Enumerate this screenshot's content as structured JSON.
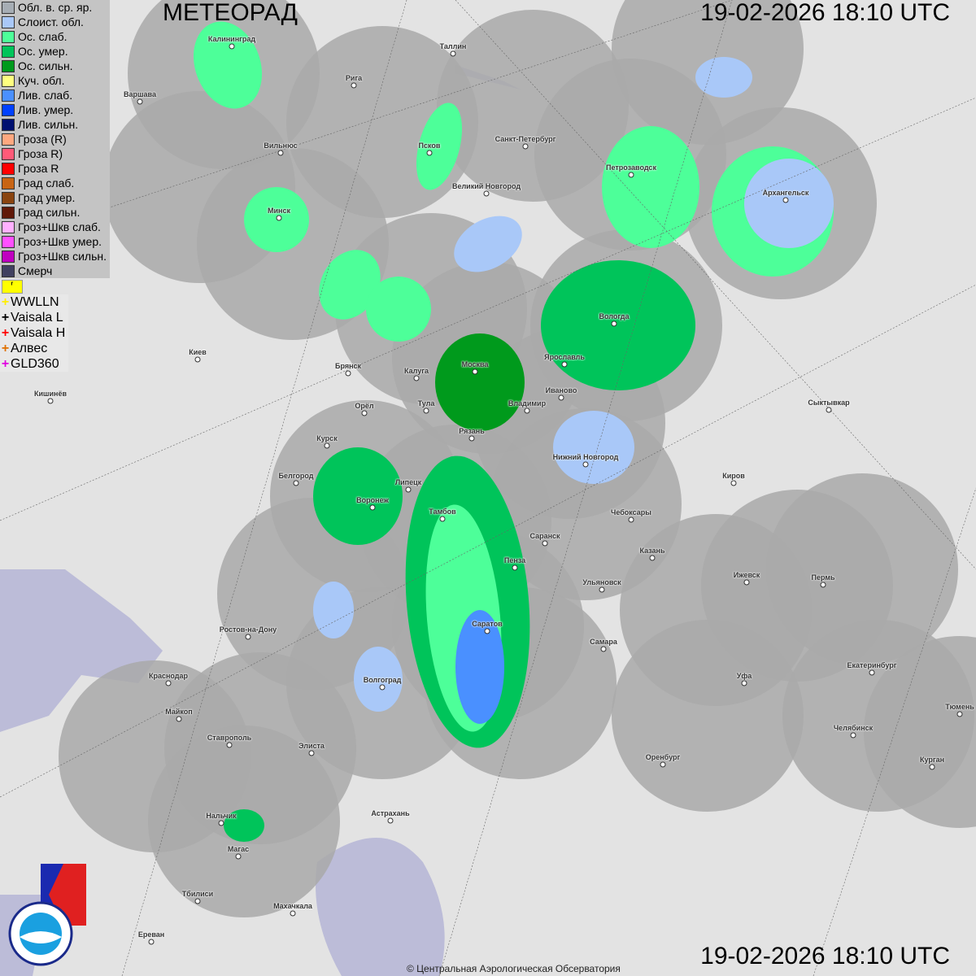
{
  "header": {
    "title": "МЕТЕОРАД",
    "timestamp": "19-02-2026  18:10 UTC"
  },
  "footer": {
    "timestamp": "19-02-2026  18:10 UTC",
    "copyright": "© Центральная Аэрологическая Обсерватория"
  },
  "legend": [
    {
      "label": "Обл. в. ср. яр.",
      "color": "#a6adb4"
    },
    {
      "label": "Слоист. обл.",
      "color": "#a9c8f8"
    },
    {
      "label": "Ос. слаб.",
      "color": "#4dff99"
    },
    {
      "label": "Ос. умер.",
      "color": "#00c45a"
    },
    {
      "label": "Ос. сильн.",
      "color": "#009a1c"
    },
    {
      "label": "Куч. обл.",
      "color": "#ffff80"
    },
    {
      "label": "Лив. слаб.",
      "color": "#4a90ff"
    },
    {
      "label": "Лив. умер.",
      "color": "#0040ff"
    },
    {
      "label": "Лив. сильн.",
      "color": "#001070"
    },
    {
      "label": "Гроза (R)",
      "color": "#ffa880"
    },
    {
      "label": "Гроза R)",
      "color": "#ff5a78"
    },
    {
      "label": "Гроза R",
      "color": "#ff0000"
    },
    {
      "label": "Град слаб.",
      "color": "#c86414"
    },
    {
      "label": "Град умер.",
      "color": "#8a4410"
    },
    {
      "label": "Град сильн.",
      "color": "#601808"
    },
    {
      "label": "Гроз+Шкв слаб.",
      "color": "#ffb0ff"
    },
    {
      "label": "Гроз+Шкв умер.",
      "color": "#ff50ff"
    },
    {
      "label": "Гроз+Шкв сильн.",
      "color": "#c000c0"
    },
    {
      "label": "Смерч",
      "color": "#404060"
    }
  ],
  "lightning_legend": [
    {
      "label": "WWLLN",
      "color": "#ffee00"
    },
    {
      "label": "Vaisala L",
      "color": "#000000"
    },
    {
      "label": "Vaisala H",
      "color": "#ff0000"
    },
    {
      "label": "Алвес",
      "color": "#e07000"
    },
    {
      "label": "GLD360",
      "color": "#e000e0"
    }
  ],
  "cities": [
    {
      "name": "Калининград"
    },
    {
      "name": "Таллин"
    },
    {
      "name": "Рига"
    },
    {
      "name": "Варшава"
    },
    {
      "name": "Санкт-Петербург"
    },
    {
      "name": "Псков"
    },
    {
      "name": "Вильнюс"
    },
    {
      "name": "Петрозаводск"
    },
    {
      "name": "Великий Новгород"
    },
    {
      "name": "Архангельск"
    },
    {
      "name": "Минск"
    },
    {
      "name": "Вологда"
    },
    {
      "name": "Киев"
    },
    {
      "name": "Ярославль"
    },
    {
      "name": "Москва"
    },
    {
      "name": "Брянск"
    },
    {
      "name": "Калуга"
    },
    {
      "name": "Иваново"
    },
    {
      "name": "Кишинёв"
    },
    {
      "name": "Тула"
    },
    {
      "name": "Владимир"
    },
    {
      "name": "Сыктывкар"
    },
    {
      "name": "Орёл"
    },
    {
      "name": "Рязань"
    },
    {
      "name": "Курск"
    },
    {
      "name": "Нижний Новгород"
    },
    {
      "name": "Белгород"
    },
    {
      "name": "Киров"
    },
    {
      "name": "Липецк"
    },
    {
      "name": "Воронеж"
    },
    {
      "name": "Тамбов"
    },
    {
      "name": "Чебоксары"
    },
    {
      "name": "Саранск"
    },
    {
      "name": "Казань"
    },
    {
      "name": "Пенза"
    },
    {
      "name": "Ижевск"
    },
    {
      "name": "Пермь"
    },
    {
      "name": "Ульяновск"
    },
    {
      "name": "Ростов-на-Дону"
    },
    {
      "name": "Саратов"
    },
    {
      "name": "Самара"
    },
    {
      "name": "Екатеринбург"
    },
    {
      "name": "Краснодар"
    },
    {
      "name": "Уфа"
    },
    {
      "name": "Волгоград"
    },
    {
      "name": "Тюмень"
    },
    {
      "name": "Майкоп"
    },
    {
      "name": "Челябинск"
    },
    {
      "name": "Ставрополь"
    },
    {
      "name": "Элиста"
    },
    {
      "name": "Оренбург"
    },
    {
      "name": "Курган"
    },
    {
      "name": "Астрахань"
    },
    {
      "name": "Нальчик"
    },
    {
      "name": "Магас"
    },
    {
      "name": "Тбилиси"
    },
    {
      "name": "Махачкала"
    },
    {
      "name": "Ереван"
    }
  ],
  "logos": {
    "cao": "ЦАО 1941",
    "roshydromet": "РОСГИДРОМЕТ ROSHYDROMET"
  }
}
